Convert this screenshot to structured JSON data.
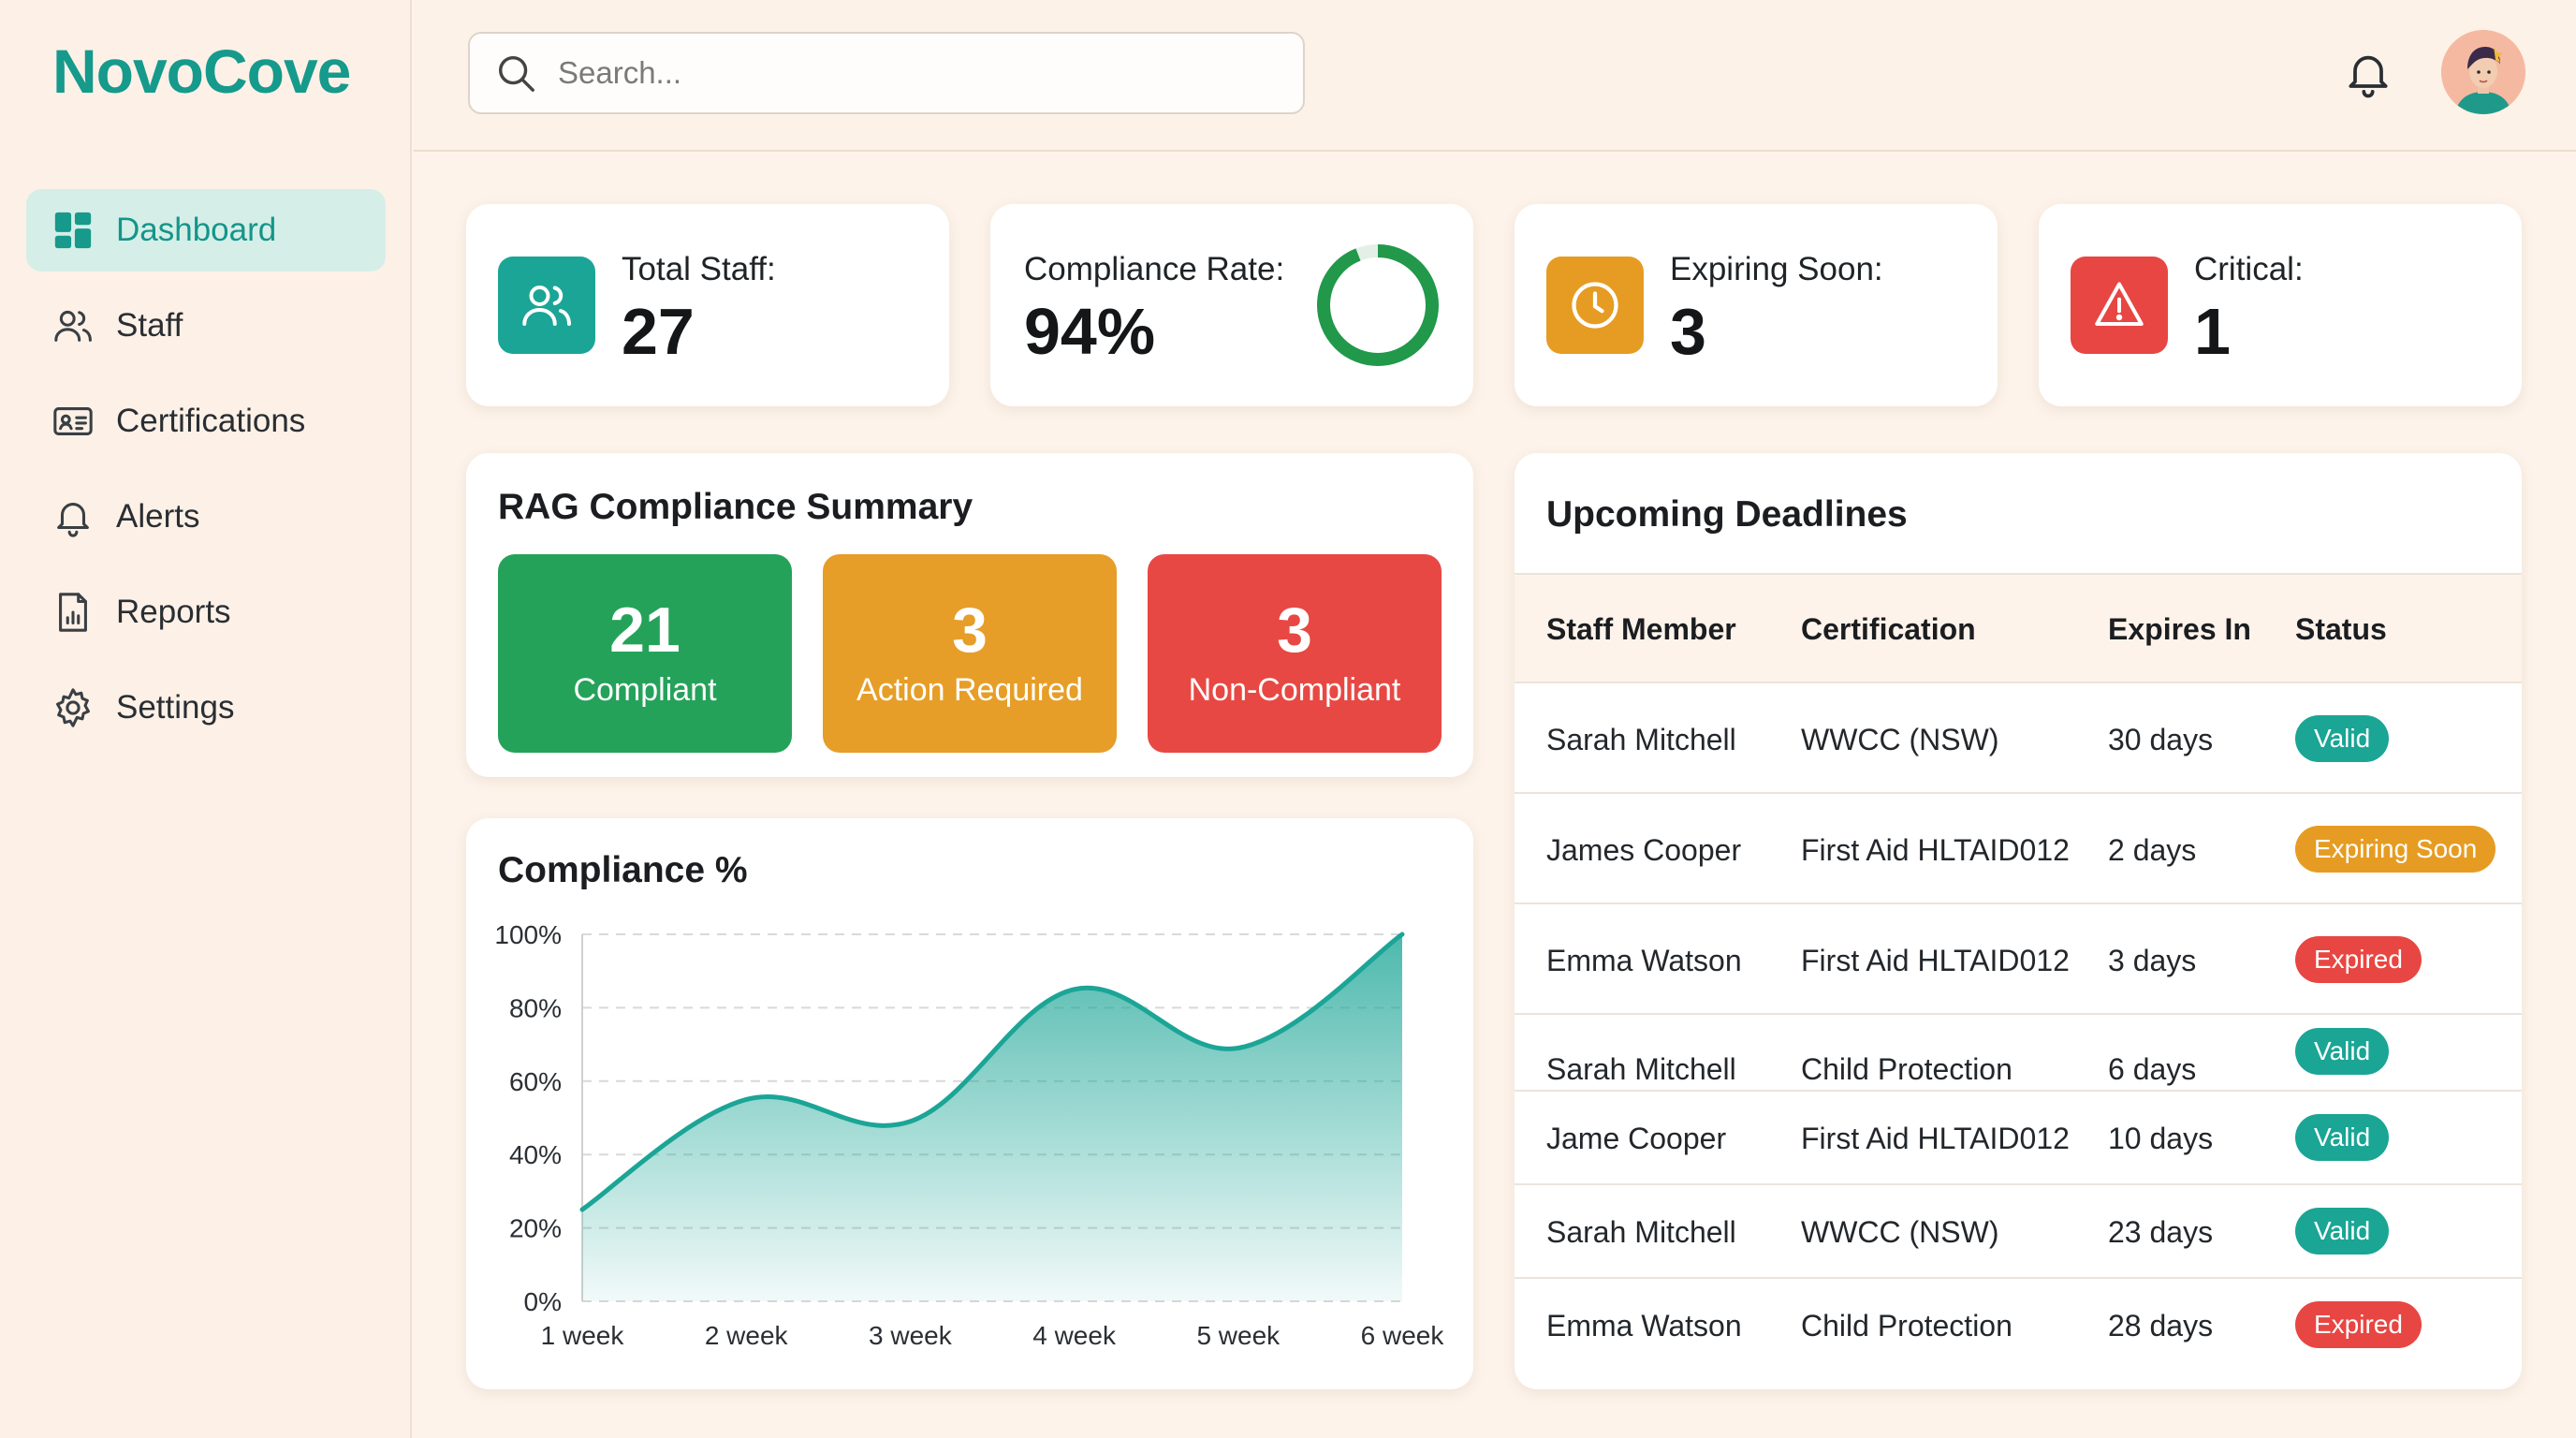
{
  "app": {
    "brand": "NovoCove"
  },
  "sidebar": {
    "items": [
      {
        "label": "Dashboard",
        "icon": "dashboard-icon",
        "active": true
      },
      {
        "label": "Staff",
        "icon": "users-icon",
        "active": false
      },
      {
        "label": "Certifications",
        "icon": "id-card-icon",
        "active": false
      },
      {
        "label": "Alerts",
        "icon": "bell-icon",
        "active": false
      },
      {
        "label": "Reports",
        "icon": "report-icon",
        "active": false
      },
      {
        "label": "Settings",
        "icon": "gear-icon",
        "active": false
      }
    ]
  },
  "topbar": {
    "search_placeholder": "Search...",
    "search_value": ""
  },
  "stats": {
    "total_staff": {
      "label": "Total Staff:",
      "value": "27",
      "color": "#1ba596"
    },
    "compliance_rate": {
      "label": "Compliance Rate:",
      "value": "94%",
      "ring_color": "#21984a",
      "ring_fraction": 0.94
    },
    "expiring_soon": {
      "label": "Expiring Soon:",
      "value": "3",
      "color": "#e69c22"
    },
    "critical": {
      "label": "Critical:",
      "value": "1",
      "color": "#e84642"
    }
  },
  "rag": {
    "title": "RAG Compliance Summary",
    "boxes": [
      {
        "value": "21",
        "label": "Compliant",
        "color": "#25a25a"
      },
      {
        "value": "3",
        "label": "Action Required",
        "color": "#e69e28"
      },
      {
        "value": "3",
        "label": "Non-Compliant",
        "color": "#e84843"
      }
    ]
  },
  "chart": {
    "title": "Compliance %"
  },
  "chart_data": {
    "type": "area",
    "title": "Compliance %",
    "x": [
      "1 week",
      "2 week",
      "3 week",
      "4 week",
      "5 week",
      "6 week"
    ],
    "series": [
      {
        "values": [
          25,
          55,
          49,
          85,
          69,
          100
        ]
      }
    ],
    "ylim": [
      0,
      100
    ],
    "yticks": [
      "0%",
      "20%",
      "40%",
      "60%",
      "80%",
      "100%"
    ],
    "grid": true,
    "color": "#1ba596"
  },
  "deadlines": {
    "title": "Upcoming Deadlines",
    "columns": [
      "Staff Member",
      "Certification",
      "Expires In",
      "Status"
    ],
    "rows": [
      {
        "staff": "Sarah Mitchell",
        "cert": "WWCC (NSW)",
        "expires": "30 days",
        "status": "Valid",
        "status_color": "#1aa595"
      },
      {
        "staff": "James Cooper",
        "cert": "First Aid HLTAID012",
        "expires": "2 days",
        "status": "Expiring Soon",
        "status_color": "#e69c22"
      },
      {
        "staff": "Emma Watson",
        "cert": "First Aid HLTAID012",
        "expires": "3 days",
        "status": "Expired",
        "status_color": "#e84642"
      },
      {
        "staff": "Sarah Mitchell",
        "cert": "Child Protection",
        "expires": "6 days",
        "status": "Valid",
        "status_color": "#1aa595"
      },
      {
        "staff": "Jame Cooper",
        "cert": "First Aid HLTAID012",
        "expires": "10 days",
        "status": "Valid",
        "status_color": "#1aa595"
      },
      {
        "staff": "Sarah Mitchell",
        "cert": "WWCC (NSW)",
        "expires": "23 days",
        "status": "Valid",
        "status_color": "#1aa595"
      },
      {
        "staff": "Emma Watson",
        "cert": "Child Protection",
        "expires": "28 days",
        "status": "Expired",
        "status_color": "#e84642"
      }
    ]
  }
}
